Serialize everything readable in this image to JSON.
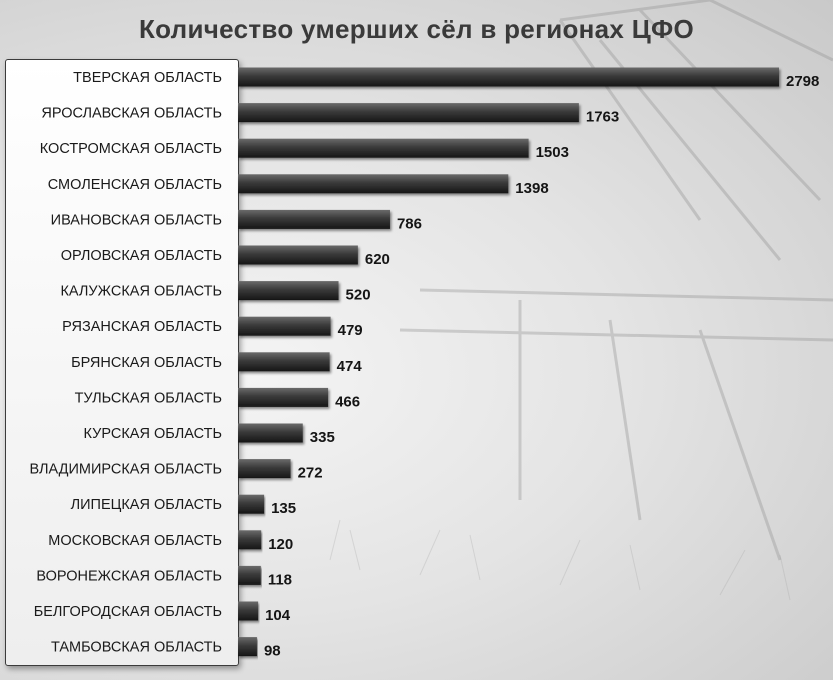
{
  "title": "Количество умерших сёл в регионах ЦФО",
  "chart_data": {
    "type": "bar",
    "orientation": "horizontal",
    "title": "Количество умерших сёл в регионах ЦФО",
    "xlabel": "",
    "ylabel": "",
    "grid": false,
    "categories": [
      "ТВЕРСКАЯ ОБЛАСТЬ",
      "ЯРОСЛАВСКАЯ ОБЛАСТЬ",
      "КОСТРОМСКАЯ ОБЛАСТЬ",
      "СМОЛЕНСКАЯ ОБЛАСТЬ",
      "ИВАНОВСКАЯ ОБЛАСТЬ",
      "ОРЛОВСКАЯ ОБЛАСТЬ",
      "КАЛУЖСКАЯ ОБЛАСТЬ",
      "РЯЗАНСКАЯ ОБЛАСТЬ",
      "БРЯНСКАЯ ОБЛАСТЬ",
      "ТУЛЬСКАЯ ОБЛАСТЬ",
      "КУРСКАЯ ОБЛАСТЬ",
      "ВЛАДИМИРСКАЯ ОБЛАСТЬ",
      "ЛИПЕЦКАЯ ОБЛАСТЬ",
      "МОСКОВСКАЯ ОБЛАСТЬ",
      "ВОРОНЕЖСКАЯ ОБЛАСТЬ",
      "БЕЛГОРОДСКАЯ ОБЛАСТЬ",
      "ТАМБОВСКАЯ ОБЛАСТЬ"
    ],
    "values": [
      2798,
      1763,
      1503,
      1398,
      786,
      620,
      520,
      479,
      474,
      466,
      335,
      272,
      135,
      120,
      118,
      104,
      98
    ],
    "xlim": [
      0,
      2798
    ],
    "bar_color": "#3a3a3a",
    "label_color": "#1a1a1a"
  }
}
